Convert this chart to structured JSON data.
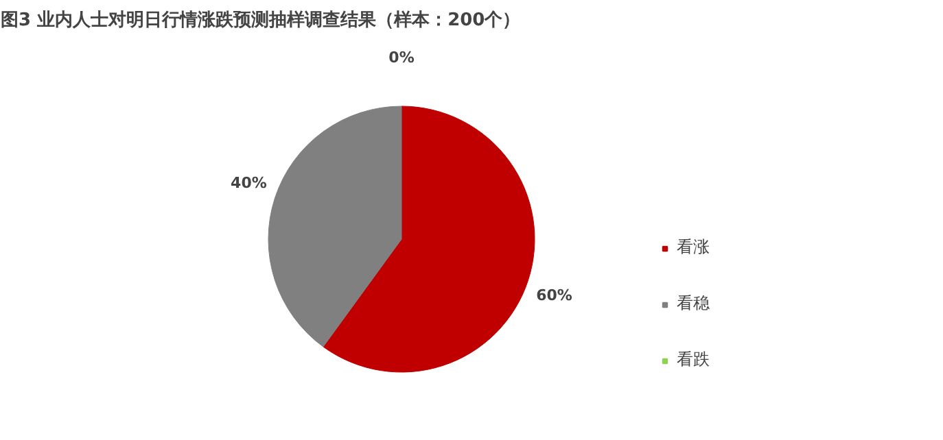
{
  "chart_data": {
    "type": "pie",
    "title": "图3  业内人士对明日行情涨跌预测抽样调查结果（样本：200个）",
    "categories": [
      "看涨",
      "看稳",
      "看跌"
    ],
    "values": [
      60,
      40,
      0
    ],
    "colors": [
      "#c00000",
      "#808080",
      "#92d050"
    ],
    "value_labels": [
      "60%",
      "40%",
      "0%"
    ],
    "legend": "right"
  }
}
